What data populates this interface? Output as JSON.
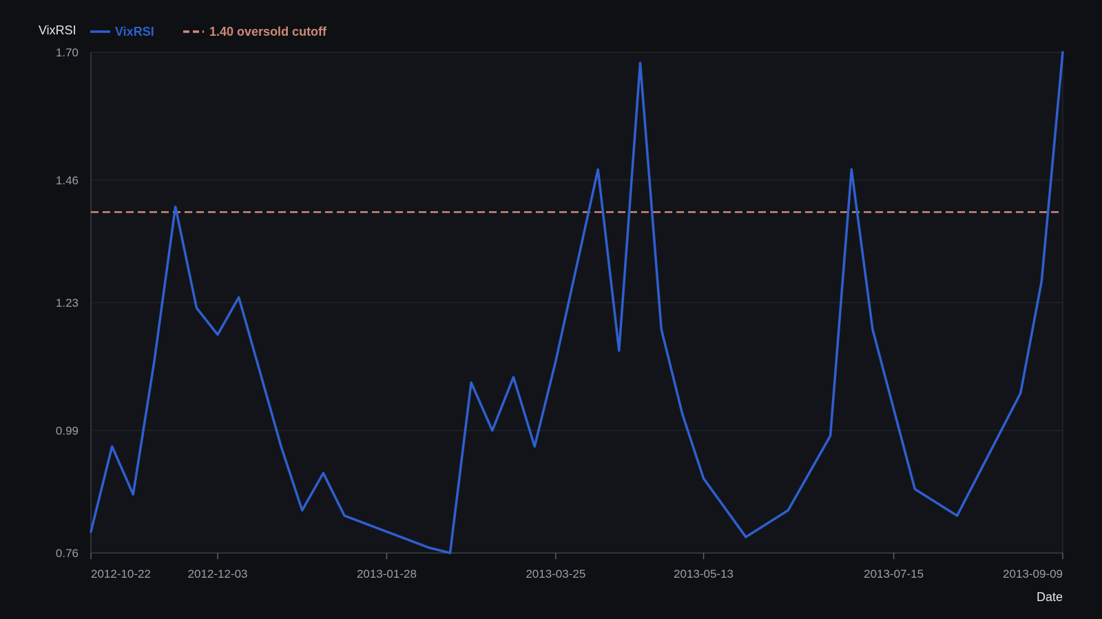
{
  "chart_data": {
    "type": "line",
    "title": "",
    "xlabel": "Date",
    "ylabel": "VixRSI",
    "ylim": [
      0.76,
      1.7
    ],
    "y_ticks": [
      "0.76",
      "0.99",
      "1.23",
      "1.46",
      "1.70"
    ],
    "x_ticks": [
      {
        "date": "2012-10-22",
        "label": "2012-10-22"
      },
      {
        "date": "2012-12-03",
        "label": "2012-12-03"
      },
      {
        "date": "2013-01-28",
        "label": "2013-01-28"
      },
      {
        "date": "2013-03-25",
        "label": "2013-03-25"
      },
      {
        "date": "2013-05-13",
        "label": "2013-05-13"
      },
      {
        "date": "2013-07-15",
        "label": "2013-07-15"
      },
      {
        "date": "2013-09-09",
        "label": "2013-09-09"
      }
    ],
    "xlim": [
      "2012-10-22",
      "2013-09-09"
    ],
    "grid": true,
    "legend_position": "top-left",
    "series": [
      {
        "name": "VixRSI",
        "color": "#2f5fd0",
        "points": [
          {
            "x": "2012-10-22",
            "y": 0.8
          },
          {
            "x": "2012-10-29",
            "y": 0.96
          },
          {
            "x": "2012-11-05",
            "y": 0.87
          },
          {
            "x": "2012-11-12",
            "y": 1.12
          },
          {
            "x": "2012-11-19",
            "y": 1.41
          },
          {
            "x": "2012-11-26",
            "y": 1.22
          },
          {
            "x": "2012-12-03",
            "y": 1.17
          },
          {
            "x": "2012-12-10",
            "y": 1.24
          },
          {
            "x": "2012-12-17",
            "y": 1.1
          },
          {
            "x": "2012-12-24",
            "y": 0.96
          },
          {
            "x": "2012-12-31",
            "y": 0.84
          },
          {
            "x": "2013-01-07",
            "y": 0.91
          },
          {
            "x": "2013-01-14",
            "y": 0.83
          },
          {
            "x": "2013-02-11",
            "y": 0.77
          },
          {
            "x": "2013-02-18",
            "y": 0.76
          },
          {
            "x": "2013-02-25",
            "y": 1.08
          },
          {
            "x": "2013-03-04",
            "y": 0.99
          },
          {
            "x": "2013-03-11",
            "y": 1.09
          },
          {
            "x": "2013-03-18",
            "y": 0.96
          },
          {
            "x": "2013-03-25",
            "y": 1.12
          },
          {
            "x": "2013-04-01",
            "y": 1.3
          },
          {
            "x": "2013-04-08",
            "y": 1.48
          },
          {
            "x": "2013-04-15",
            "y": 1.14
          },
          {
            "x": "2013-04-22",
            "y": 1.68
          },
          {
            "x": "2013-04-29",
            "y": 1.18
          },
          {
            "x": "2013-05-06",
            "y": 1.02
          },
          {
            "x": "2013-05-13",
            "y": 0.9
          },
          {
            "x": "2013-05-27",
            "y": 0.79
          },
          {
            "x": "2013-06-10",
            "y": 0.84
          },
          {
            "x": "2013-06-24",
            "y": 0.98
          },
          {
            "x": "2013-07-01",
            "y": 1.48
          },
          {
            "x": "2013-07-08",
            "y": 1.18
          },
          {
            "x": "2013-07-15",
            "y": 1.03
          },
          {
            "x": "2013-07-22",
            "y": 0.88
          },
          {
            "x": "2013-08-05",
            "y": 0.83
          },
          {
            "x": "2013-08-26",
            "y": 1.06
          },
          {
            "x": "2013-09-02",
            "y": 1.27
          },
          {
            "x": "2013-09-09",
            "y": 1.7
          }
        ]
      }
    ],
    "reference_line": {
      "label": "1.40 oversold cutoff",
      "y": 1.4,
      "color": "#d08a76",
      "style": "dashed"
    }
  }
}
